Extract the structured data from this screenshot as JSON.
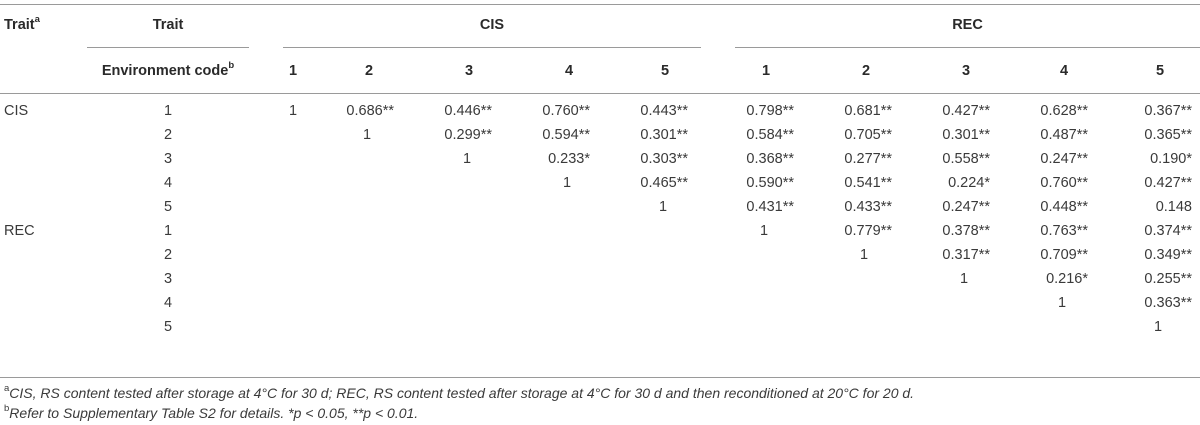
{
  "header": {
    "trait_col": "Trait",
    "trait_col_sup": "a",
    "trait_label": "Trait",
    "env_label": "Environment code",
    "env_label_sup": "b",
    "group_cis": "CIS",
    "group_rec": "REC",
    "cis_codes": [
      "1",
      "2",
      "3",
      "4",
      "5"
    ],
    "rec_codes": [
      "1",
      "2",
      "3",
      "4",
      "5"
    ]
  },
  "rows": [
    {
      "trait": "CIS",
      "code": "1",
      "values": [
        "1",
        "0.686**",
        "0.446**",
        "0.760**",
        "0.443**",
        "0.798**",
        "0.681**",
        "0.427**",
        "0.628**",
        "0.367**"
      ]
    },
    {
      "trait": "",
      "code": "2",
      "values": [
        "",
        "1",
        "0.299**",
        "0.594**",
        "0.301**",
        "0.584**",
        "0.705**",
        "0.301**",
        "0.487**",
        "0.365**"
      ]
    },
    {
      "trait": "",
      "code": "3",
      "values": [
        "",
        "",
        "1",
        "0.233*",
        "0.303**",
        "0.368**",
        "0.277**",
        "0.558**",
        "0.247**",
        "0.190*"
      ]
    },
    {
      "trait": "",
      "code": "4",
      "values": [
        "",
        "",
        "",
        "1",
        "0.465**",
        "0.590**",
        "0.541**",
        "0.224*",
        "0.760**",
        "0.427**"
      ]
    },
    {
      "trait": "",
      "code": "5",
      "values": [
        "",
        "",
        "",
        "",
        "1",
        "0.431**",
        "0.433**",
        "0.247**",
        "0.448**",
        "0.148"
      ]
    },
    {
      "trait": "REC",
      "code": "1",
      "values": [
        "",
        "",
        "",
        "",
        "",
        "1",
        "0.779**",
        "0.378**",
        "0.763**",
        "0.374**"
      ]
    },
    {
      "trait": "",
      "code": "2",
      "values": [
        "",
        "",
        "",
        "",
        "",
        "",
        "1",
        "0.317**",
        "0.709**",
        "0.349**"
      ]
    },
    {
      "trait": "",
      "code": "3",
      "values": [
        "",
        "",
        "",
        "",
        "",
        "",
        "",
        "1",
        "0.216*",
        "0.255**"
      ]
    },
    {
      "trait": "",
      "code": "4",
      "values": [
        "",
        "",
        "",
        "",
        "",
        "",
        "",
        "",
        "1",
        "0.363**"
      ]
    },
    {
      "trait": "",
      "code": "5",
      "values": [
        "",
        "",
        "",
        "",
        "",
        "",
        "",
        "",
        "",
        "1"
      ]
    }
  ],
  "footnotes": {
    "a_mark": "a",
    "a_text": "CIS, RS content tested after storage at 4°C for 30 d; REC, RS content tested after storage at 4°C for 30 d and then reconditioned at 20°C for 20 d.",
    "b_mark": "b",
    "b_text_1": "Refer to Supplementary Table S2 for details. *",
    "b_p1": "p",
    "b_text_2": " < 0.05, **",
    "b_p2": "p",
    "b_text_3": " < 0.01."
  }
}
